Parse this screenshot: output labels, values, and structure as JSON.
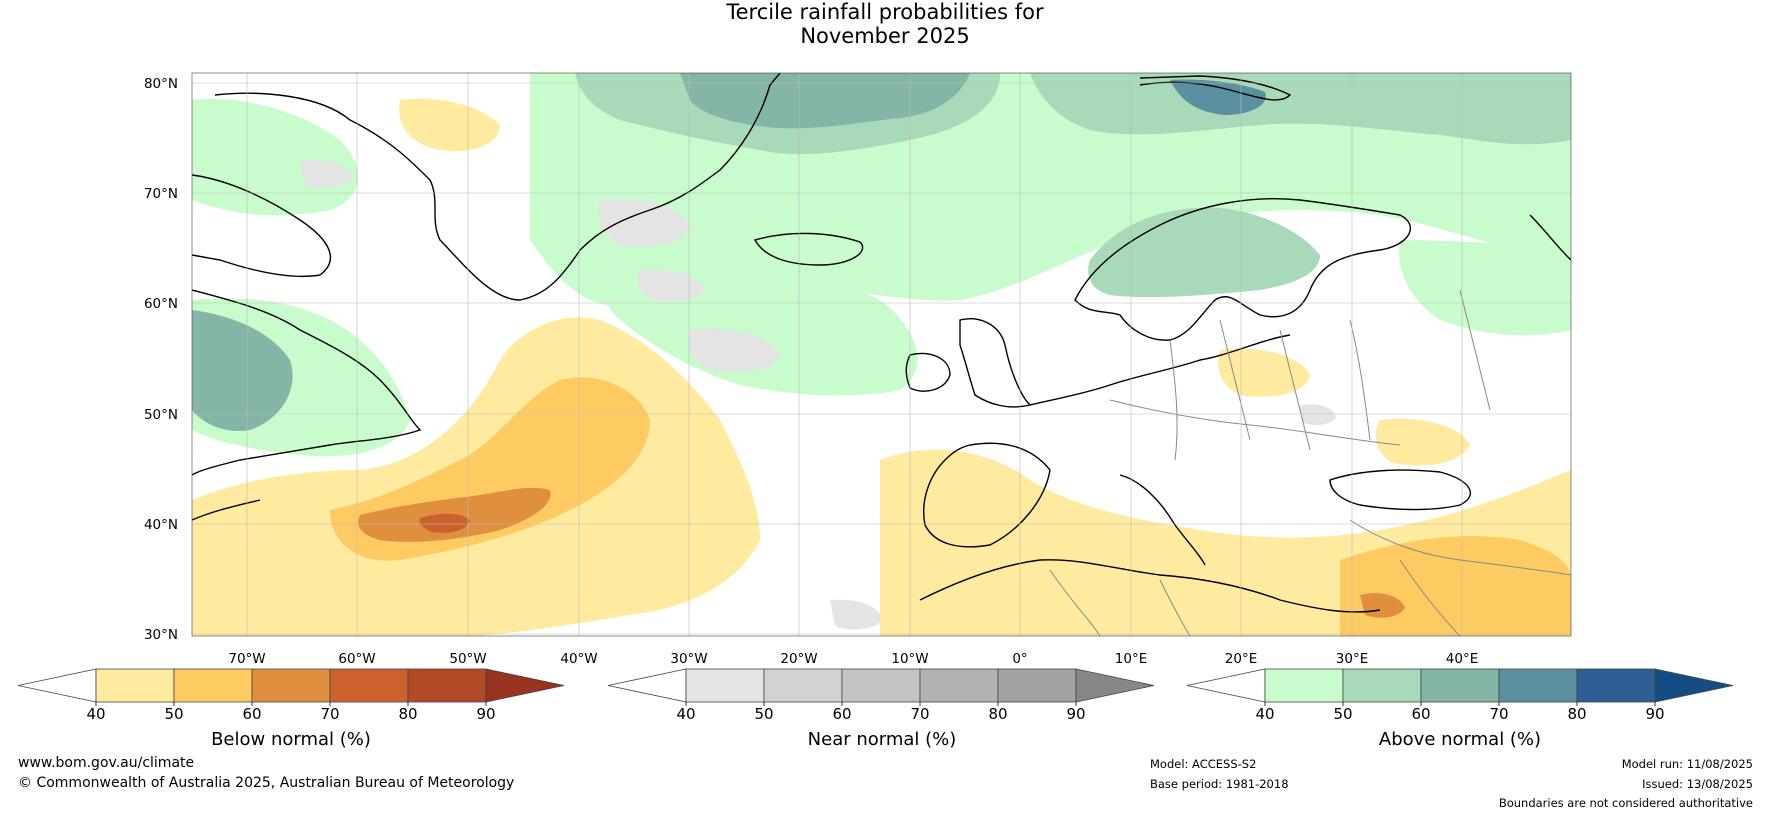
{
  "title": {
    "line1": "Tercile rainfall probabilities for",
    "line2": "November 2025"
  },
  "map": {
    "lat_labels": [
      "80°N",
      "70°N",
      "60°N",
      "50°N",
      "40°N",
      "30°N"
    ],
    "lon_labels": [
      "70°W",
      "60°W",
      "50°W",
      "40°W",
      "30°W",
      "20°W",
      "10°W",
      "0°",
      "10°E",
      "20°E",
      "30°E",
      "40°E"
    ],
    "ocean_color": "#ffffff",
    "gridline_color": "#bbbbbb",
    "coastline_color": "#000000",
    "border_color": "#888888"
  },
  "colorbars": [
    {
      "label": "Below normal (%)",
      "ticks": [
        "40",
        "50",
        "60",
        "70",
        "80",
        "90"
      ],
      "colors": [
        "#ffffff",
        "#ffeba0",
        "#fecb63",
        "#e08f3e",
        "#cc602f",
        "#b24a27",
        "#99321e"
      ]
    },
    {
      "label": "Near normal (%)",
      "ticks": [
        "40",
        "50",
        "60",
        "70",
        "80",
        "90"
      ],
      "colors": [
        "#ffffff",
        "#e4e4e4",
        "#d2d2d2",
        "#c4c4c4",
        "#b2b2b2",
        "#a2a2a2",
        "#868686"
      ]
    },
    {
      "label": "Above normal (%)",
      "ticks": [
        "40",
        "50",
        "60",
        "70",
        "80",
        "90"
      ],
      "colors": [
        "#ffffff",
        "#c9fccc",
        "#a8d9b8",
        "#84b6a8",
        "#5a90a0",
        "#2e5f94",
        "#164c84"
      ]
    }
  ],
  "footer": {
    "url": "www.bom.gov.au/climate",
    "copyright": "© Commonwealth of Australia 2025, Australian Bureau of Meteorology",
    "model": "Model: ACCESS-S2",
    "base_period": "Base period: 1981-2018",
    "model_run": "Model run: 11/08/2025",
    "issued": "Issued: 13/08/2025",
    "disclaimer": "Boundaries are not considered authoritative"
  }
}
